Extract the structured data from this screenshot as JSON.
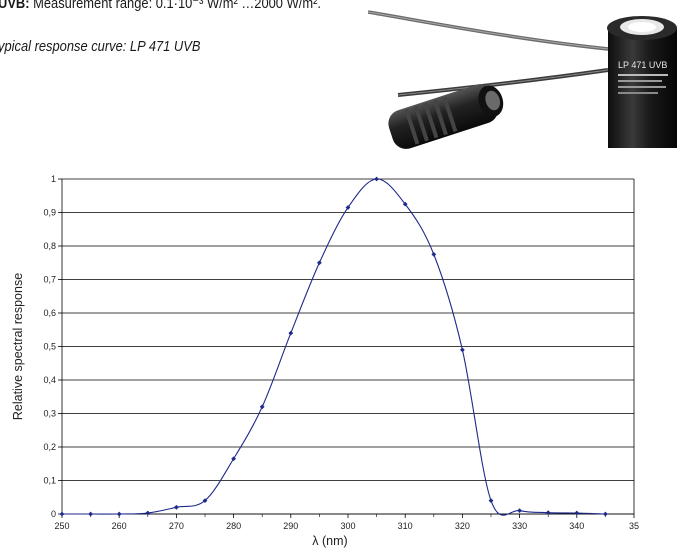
{
  "header": {
    "range_label": "UVB:",
    "range_text": " Measurement range: 0.1·10⁻³ W/m² …2000 W/m²."
  },
  "caption": "ypical response curve: LP 471 UVB",
  "product": {
    "label_text": "LP 471 UVB"
  },
  "chart_data": {
    "type": "line",
    "xlabel": "λ (nm)",
    "ylabel": "Relative spectral response",
    "xlim": [
      250,
      350
    ],
    "ylim": [
      0,
      1
    ],
    "x_ticks": [
      "250",
      "260",
      "270",
      "280",
      "290",
      "300",
      "310",
      "320",
      "330",
      "340",
      "35"
    ],
    "y_ticks": [
      "0",
      "0,1",
      "0,2",
      "0,3",
      "0,4",
      "0,5",
      "0,6",
      "0,7",
      "0,8",
      "0,9",
      "1"
    ],
    "grid": "horizontal",
    "series": [
      {
        "color": "#1f2a8a",
        "x": [
          250,
          255,
          260,
          265,
          270,
          275,
          280,
          285,
          290,
          295,
          300,
          305,
          310,
          315,
          320,
          325,
          330,
          335,
          340,
          345
        ],
        "y": [
          0,
          0,
          0,
          0.003,
          0.02,
          0.04,
          0.165,
          0.32,
          0.54,
          0.75,
          0.915,
          1.0,
          0.925,
          0.775,
          0.49,
          0.04,
          0.01,
          0.004,
          0.003,
          0
        ]
      }
    ]
  }
}
